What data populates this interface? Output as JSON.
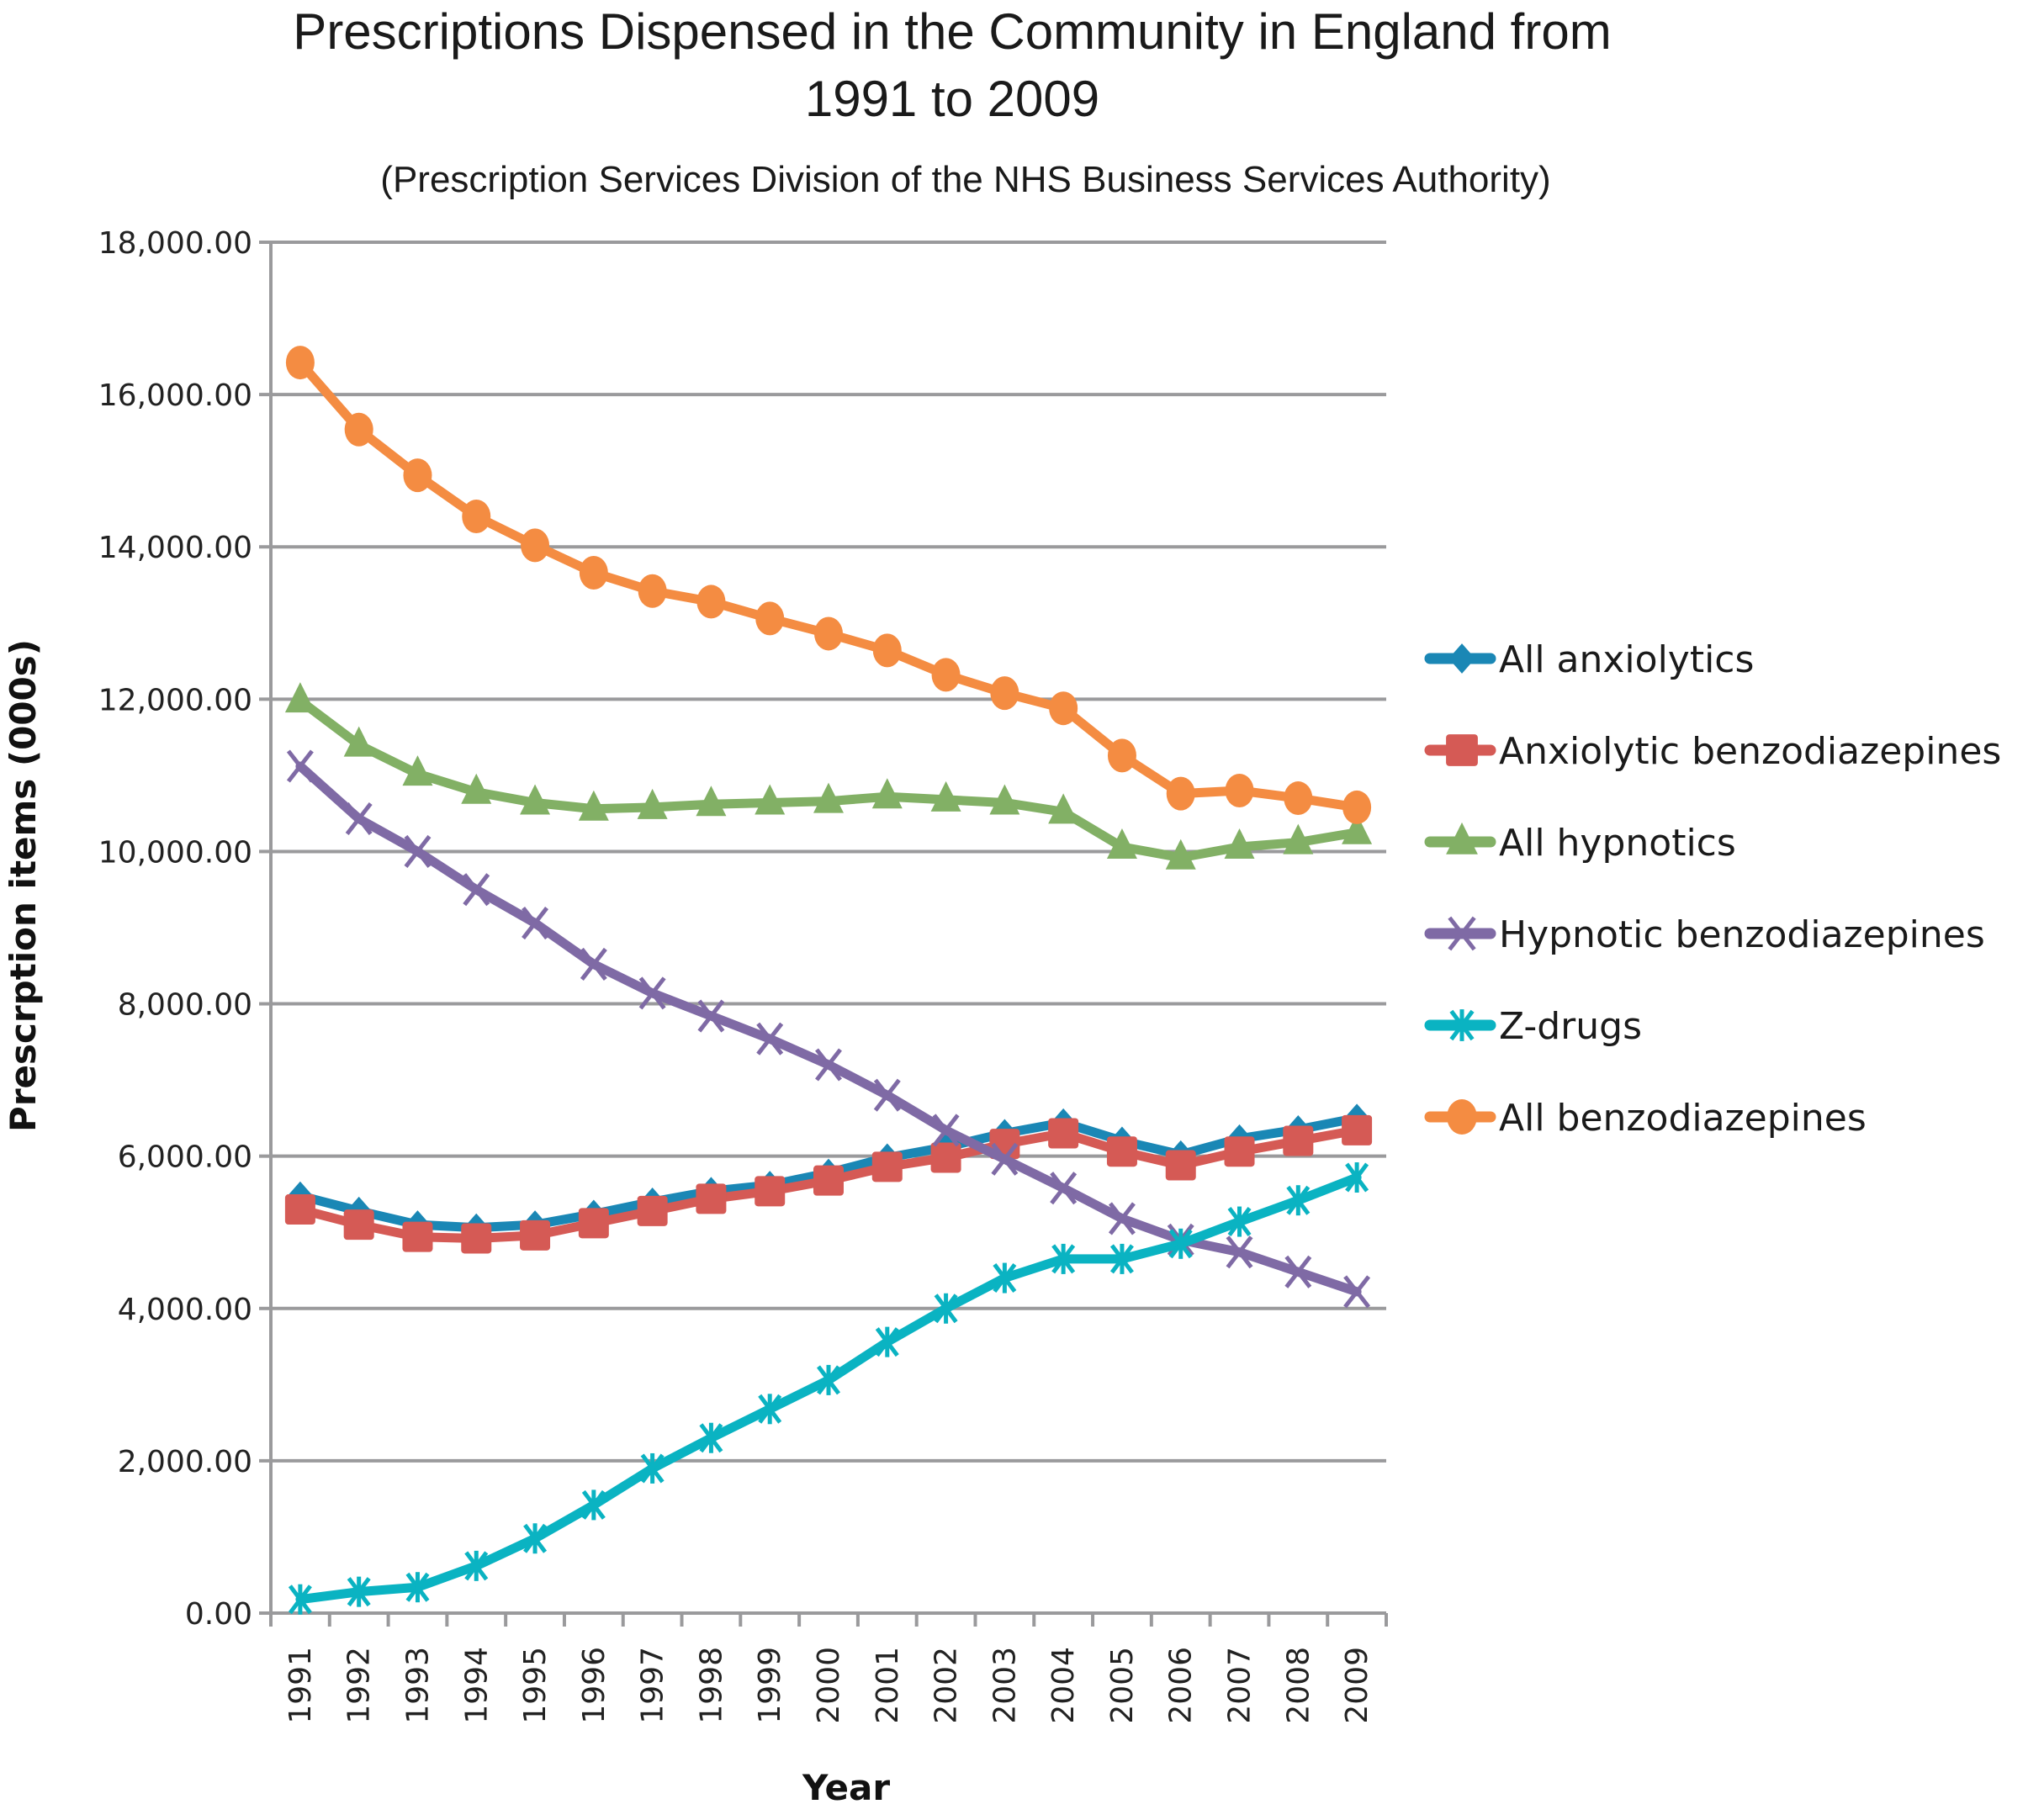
{
  "chart_data": {
    "type": "line",
    "title_lines": [
      "Prescriptions Dispensed in the Community in England from",
      "1991 to 2009"
    ],
    "subtitle": "(Prescription Services Division of the NHS Business Services Authority)",
    "xlabel": "Year",
    "ylabel": "Prescrption items (000s)",
    "ylim": [
      0,
      18000
    ],
    "yticks": [
      0,
      2000,
      4000,
      6000,
      8000,
      10000,
      12000,
      14000,
      16000,
      18000
    ],
    "ytick_labels": [
      "0.00",
      "2,000.00",
      "4,000.00",
      "6,000.00",
      "8,000.00",
      "10,000.00",
      "12,000.00",
      "14,000.00",
      "16,000.00",
      "18,000.00"
    ],
    "categories": [
      "1991",
      "1992",
      "1993",
      "1994",
      "1995",
      "1996",
      "1997",
      "1998",
      "1999",
      "2000",
      "2001",
      "2002",
      "2003",
      "2004",
      "2005",
      "2006",
      "2007",
      "2008",
      "2009"
    ],
    "grid": true,
    "legend_position": "right",
    "series": [
      {
        "name": "All anxiolytics",
        "color": "#1a87b5",
        "marker": "diamond",
        "values": [
          5480,
          5280,
          5100,
          5060,
          5100,
          5240,
          5400,
          5540,
          5620,
          5780,
          5980,
          6120,
          6300,
          6440,
          6200,
          6020,
          6230,
          6350,
          6500
        ]
      },
      {
        "name": "Anxiolytic benzodiazepines",
        "color": "#d55a55",
        "marker": "square",
        "values": [
          5300,
          5100,
          4940,
          4920,
          4960,
          5120,
          5280,
          5440,
          5540,
          5680,
          5860,
          5980,
          6160,
          6300,
          6060,
          5880,
          6060,
          6200,
          6340
        ]
      },
      {
        "name": "All hypnotics",
        "color": "#82b065",
        "marker": "triangle",
        "values": [
          11980,
          11400,
          11020,
          10780,
          10640,
          10560,
          10580,
          10620,
          10640,
          10660,
          10720,
          10680,
          10640,
          10520,
          10060,
          9920,
          10060,
          10120,
          10250
        ]
      },
      {
        "name": "Hypnotic benzodiazepines",
        "color": "#7f6aa5",
        "marker": "x",
        "values": [
          11120,
          10430,
          10000,
          9500,
          9060,
          8520,
          8140,
          7840,
          7540,
          7200,
          6800,
          6340,
          5960,
          5580,
          5180,
          4900,
          4740,
          4480,
          4220
        ]
      },
      {
        "name": "Z-drugs",
        "color": "#0ab3c2",
        "marker": "star",
        "values": [
          180,
          280,
          340,
          620,
          980,
          1420,
          1900,
          2300,
          2680,
          3060,
          3560,
          4000,
          4400,
          4650,
          4650,
          4850,
          5140,
          5420,
          5720
        ]
      },
      {
        "name": "All benzodiazepines",
        "color": "#f48c42",
        "marker": "circle",
        "values": [
          16420,
          15540,
          14940,
          14400,
          14020,
          13660,
          13420,
          13280,
          13060,
          12860,
          12640,
          12320,
          12080,
          11880,
          11260,
          10760,
          10800,
          10700,
          10580
        ]
      }
    ]
  }
}
